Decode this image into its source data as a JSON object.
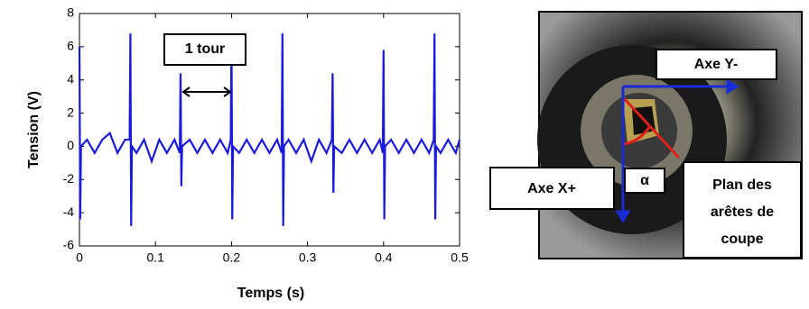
{
  "chart_data": {
    "type": "line",
    "xlabel": "Temps (s)",
    "ylabel": "Tension (V)",
    "x": [
      0,
      0.001,
      0.002,
      0.01,
      0.02,
      0.03,
      0.04,
      0.05,
      0.06,
      0.066,
      0.067,
      0.068,
      0.069,
      0.075,
      0.085,
      0.095,
      0.105,
      0.115,
      0.125,
      0.132,
      0.133,
      0.134,
      0.135,
      0.145,
      0.155,
      0.165,
      0.175,
      0.185,
      0.195,
      0.199,
      0.2,
      0.201,
      0.202,
      0.21,
      0.22,
      0.23,
      0.24,
      0.25,
      0.26,
      0.266,
      0.267,
      0.268,
      0.269,
      0.275,
      0.285,
      0.295,
      0.305,
      0.315,
      0.325,
      0.332,
      0.333,
      0.334,
      0.335,
      0.345,
      0.355,
      0.365,
      0.375,
      0.385,
      0.395,
      0.399,
      0.4,
      0.401,
      0.402,
      0.41,
      0.42,
      0.43,
      0.44,
      0.45,
      0.46,
      0.466,
      0.467,
      0.468,
      0.469,
      0.475,
      0.485,
      0.495,
      0.5
    ],
    "series": [
      {
        "name": "Tension",
        "color": "#1a1adc",
        "values": [
          6,
          -4.4,
          0,
          0.4,
          -0.4,
          0.4,
          0.8,
          -0.4,
          0.4,
          0.4,
          6.8,
          -4.8,
          0,
          -0.4,
          0.4,
          -0.9,
          0.4,
          -0.4,
          0.4,
          -0.4,
          4.4,
          -2.4,
          0,
          0.4,
          -0.4,
          0.4,
          -0.4,
          0.4,
          -0.4,
          0.4,
          6.8,
          -4.4,
          0,
          -0.4,
          0.4,
          -0.4,
          0.4,
          -0.4,
          0.4,
          -0.4,
          6.8,
          -4.8,
          0,
          0.4,
          -0.4,
          0.4,
          -0.9,
          0.4,
          -0.4,
          0.4,
          4.4,
          -2.8,
          0,
          -0.4,
          0.4,
          -0.4,
          0.4,
          -0.4,
          0.4,
          -0.4,
          5.8,
          -4.4,
          0,
          0.4,
          -0.4,
          0.4,
          -0.4,
          0.4,
          -0.4,
          0.4,
          6.8,
          -4.4,
          0,
          -0.4,
          0.4,
          -0.4,
          0.4
        ]
      }
    ],
    "xlim": [
      0,
      0.5
    ],
    "xticks": [
      0,
      0.1,
      0.2,
      0.3,
      0.4,
      0.5
    ],
    "ylim": [
      -6,
      8
    ],
    "yticks": [
      -6,
      -4,
      -2,
      0,
      2,
      4,
      6,
      8
    ],
    "grid": false,
    "annotation": "1 tour"
  },
  "photo": {
    "axis_y": "Axe Y-",
    "axis_x": "Axe X+",
    "angle": "α",
    "plane": [
      "Plan des",
      "arêtes de",
      "coupe"
    ]
  }
}
